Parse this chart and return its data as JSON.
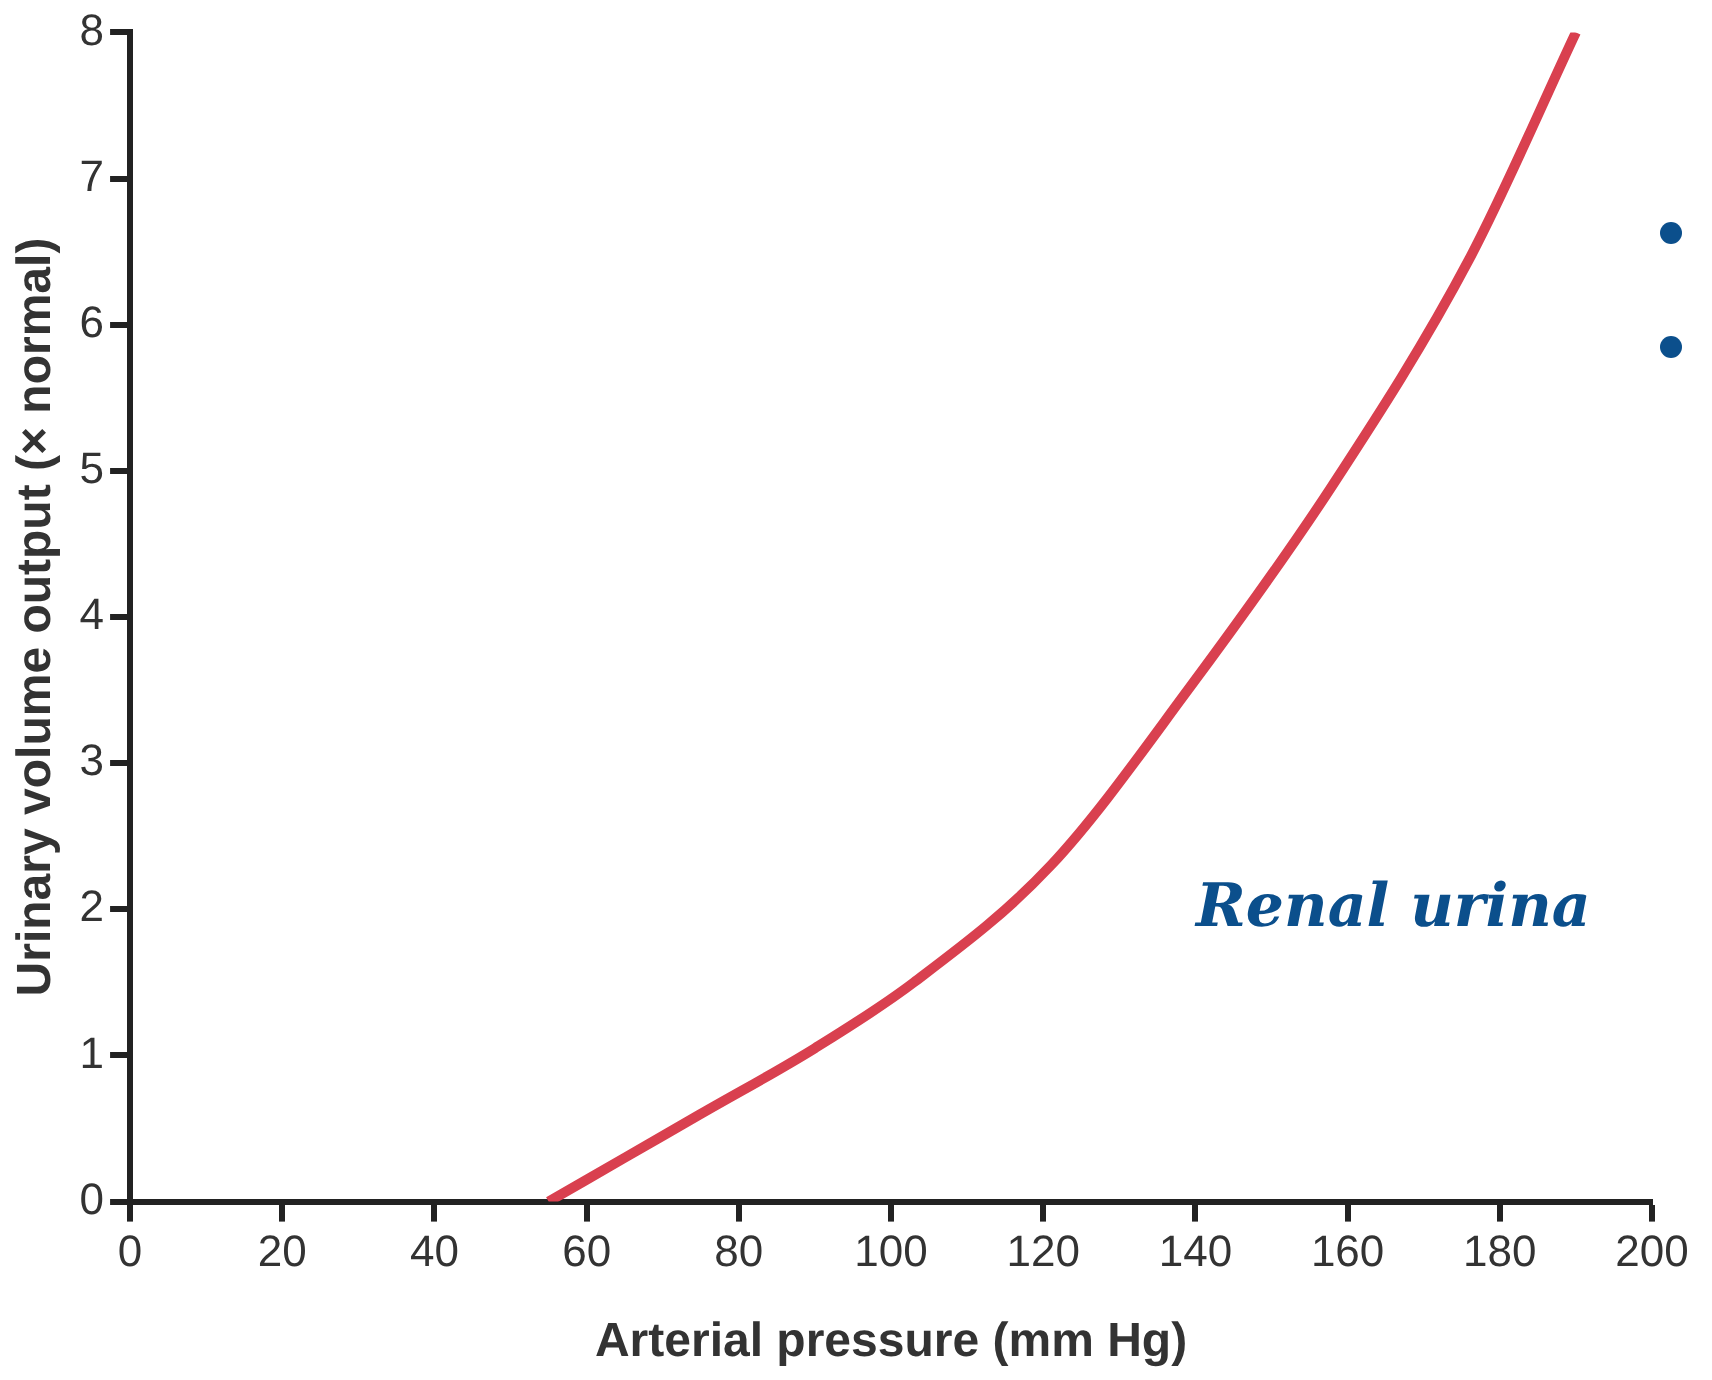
{
  "chart_data": {
    "type": "line",
    "xlabel": "Arterial pressure (mm Hg)",
    "ylabel": "Urinary volume output (× normal)",
    "x": [
      55,
      65,
      75,
      90,
      103,
      121,
      139,
      158,
      176,
      190
    ],
    "series": [
      {
        "color": "#d9404f",
        "values": [
          0,
          0.3,
          0.6,
          1.05,
          1.5,
          2.3,
          3.5,
          4.9,
          6.45,
          8
        ]
      }
    ],
    "xlim": [
      0,
      200
    ],
    "xticks": [
      0,
      20,
      40,
      60,
      80,
      100,
      120,
      140,
      160,
      180,
      200
    ],
    "ylim": [
      0,
      8
    ],
    "yticks": [
      0,
      1,
      2,
      3,
      4,
      5,
      6,
      7,
      8
    ],
    "grid": false,
    "legend": false,
    "marker": "none",
    "line_style": "solid",
    "annotations": [
      "Renal urina"
    ]
  }
}
